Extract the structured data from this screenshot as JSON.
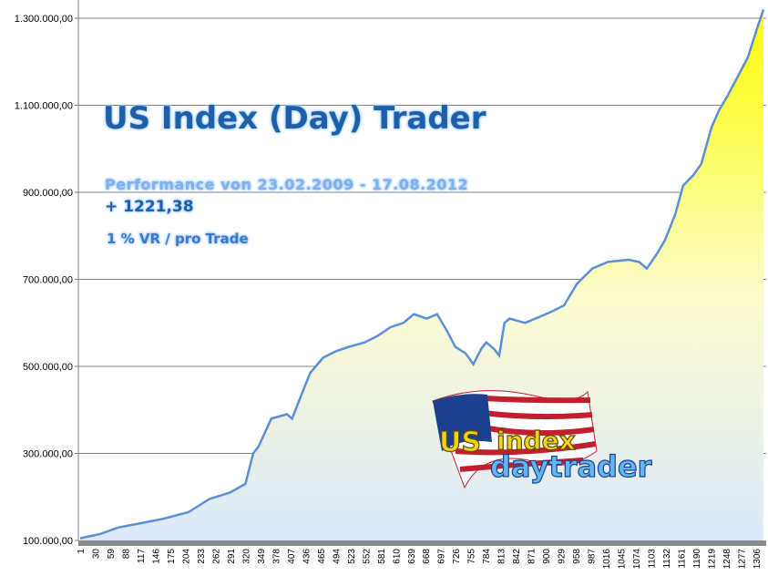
{
  "chart_data": {
    "type": "area",
    "title": "US Index (Day) Trader",
    "subtitle": "Performance  von  23.02.2009 - 17.08.2012",
    "annotations": [
      "+ 1221,38",
      "1 % VR / pro Trade"
    ],
    "xlabel": "",
    "ylabel": "",
    "ylim": [
      100000,
      1300000
    ],
    "y_ticks": [
      "100.000,00",
      "300.000,00",
      "500.000,00",
      "700.000,00",
      "900.000,00",
      "1.100.000,00",
      "1.300.000,00"
    ],
    "y_tick_values": [
      100000,
      300000,
      500000,
      700000,
      900000,
      1100000,
      1300000
    ],
    "x_ticks": [
      "1",
      "30",
      "59",
      "88",
      "117",
      "146",
      "175",
      "204",
      "233",
      "262",
      "291",
      "320",
      "349",
      "378",
      "407",
      "436",
      "465",
      "494",
      "523",
      "552",
      "581",
      "610",
      "639",
      "668",
      "697",
      "726",
      "755",
      "784",
      "813",
      "842",
      "871",
      "900",
      "929",
      "958",
      "987",
      "1016",
      "1045",
      "1074",
      "1103",
      "1132",
      "1161",
      "1190",
      "1219",
      "1248",
      "1277",
      "1306"
    ],
    "xlim": [
      1,
      1330
    ],
    "grid": true,
    "legend": "none",
    "colors": {
      "fill_top": "#ffff00",
      "fill_bottom": "#ffffff",
      "line": "#5b8fd6",
      "grid": "#808080"
    },
    "series": [
      {
        "x": [
          1,
          40,
          75,
          120,
          162,
          210,
          250,
          290,
          320,
          335,
          345,
          370,
          400,
          410,
          430,
          445,
          470,
          495,
          520,
          550,
          575,
          600,
          625,
          645,
          670,
          690,
          710,
          725,
          745,
          760,
          775,
          785,
          800,
          810,
          820,
          830,
          860,
          880,
          910,
          935,
          960,
          990,
          1020,
          1060,
          1080,
          1095,
          1115,
          1130,
          1150,
          1165,
          1185,
          1200,
          1220,
          1235,
          1250,
          1270,
          1290,
          1306,
          1320
        ],
        "y": [
          105000,
          115000,
          130000,
          140000,
          150000,
          165000,
          195000,
          210000,
          230000,
          300000,
          315000,
          380000,
          390000,
          380000,
          440000,
          485000,
          520000,
          535000,
          545000,
          555000,
          570000,
          590000,
          600000,
          620000,
          610000,
          620000,
          580000,
          545000,
          530000,
          505000,
          540000,
          555000,
          540000,
          525000,
          600000,
          610000,
          600000,
          610000,
          625000,
          640000,
          690000,
          725000,
          740000,
          745000,
          740000,
          725000,
          760000,
          790000,
          850000,
          915000,
          940000,
          965000,
          1050000,
          1090000,
          1120000,
          1165000,
          1210000,
          1270000,
          1320000
        ]
      }
    ]
  },
  "logo": {
    "text_line1": "US index",
    "text_line2": "daytrader"
  }
}
